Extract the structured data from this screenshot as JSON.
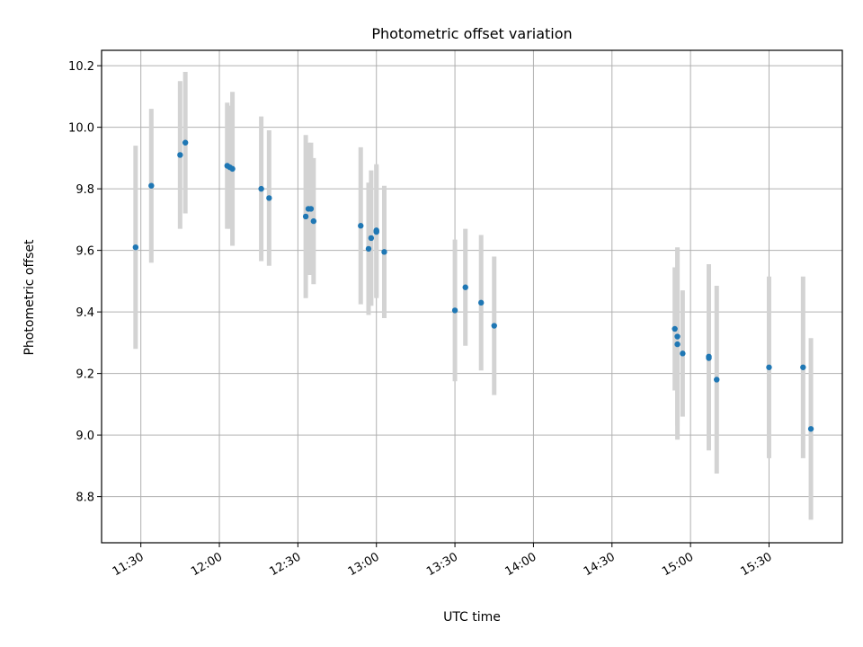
{
  "chart_data": {
    "type": "scatter",
    "title": "Photometric offset variation",
    "xlabel": "UTC time",
    "ylabel": "Photometric offset",
    "grid": true,
    "xlim": [
      "11:15",
      "15:58"
    ],
    "ylim": [
      8.65,
      10.25
    ],
    "x_ticks": [
      "11:30",
      "12:00",
      "12:30",
      "13:00",
      "13:30",
      "14:00",
      "14:30",
      "15:00",
      "15:30"
    ],
    "y_ticks": [
      8.8,
      9.0,
      9.2,
      9.4,
      9.6,
      9.8,
      10.0,
      10.2
    ],
    "colors": {
      "points": "#1f77b4",
      "errorbars": "#d3d3d3",
      "grid": "#b0b0b0"
    },
    "series": [
      {
        "points": [
          {
            "x": "11:28",
            "y": 9.61,
            "err": 0.33
          },
          {
            "x": "11:34",
            "y": 9.81,
            "err": 0.25
          },
          {
            "x": "11:45",
            "y": 9.91,
            "err": 0.24
          },
          {
            "x": "11:47",
            "y": 9.95,
            "err": 0.23
          },
          {
            "x": "12:03",
            "y": 9.875,
            "err": 0.205
          },
          {
            "x": "12:04",
            "y": 9.87,
            "err": 0.2
          },
          {
            "x": "12:05",
            "y": 9.865,
            "err": 0.25
          },
          {
            "x": "12:16",
            "y": 9.8,
            "err": 0.235
          },
          {
            "x": "12:19",
            "y": 9.77,
            "err": 0.22
          },
          {
            "x": "12:33",
            "y": 9.71,
            "err": 0.265
          },
          {
            "x": "12:34",
            "y": 9.735,
            "err": 0.215
          },
          {
            "x": "12:35",
            "y": 9.735,
            "err": 0.215
          },
          {
            "x": "12:36",
            "y": 9.695,
            "err": 0.205
          },
          {
            "x": "12:54",
            "y": 9.68,
            "err": 0.255
          },
          {
            "x": "12:57",
            "y": 9.605,
            "err": 0.215
          },
          {
            "x": "12:58",
            "y": 9.64,
            "err": 0.22
          },
          {
            "x": "13:00",
            "y": 9.665,
            "err": 0.215
          },
          {
            "x": "13:00",
            "y": 9.66,
            "err": 0.215
          },
          {
            "x": "13:03",
            "y": 9.595,
            "err": 0.215
          },
          {
            "x": "13:30",
            "y": 9.405,
            "err": 0.23
          },
          {
            "x": "13:34",
            "y": 9.48,
            "err": 0.19
          },
          {
            "x": "13:40",
            "y": 9.43,
            "err": 0.22
          },
          {
            "x": "13:45",
            "y": 9.355,
            "err": 0.225
          },
          {
            "x": "14:54",
            "y": 9.345,
            "err": 0.2
          },
          {
            "x": "14:55",
            "y": 9.295,
            "err": 0.31
          },
          {
            "x": "14:55",
            "y": 9.32,
            "err": 0.29
          },
          {
            "x": "14:57",
            "y": 9.265,
            "err": 0.205
          },
          {
            "x": "15:07",
            "y": 9.255,
            "err": 0.3
          },
          {
            "x": "15:07",
            "y": 9.25,
            "err": 0.3
          },
          {
            "x": "15:10",
            "y": 9.18,
            "err": 0.305
          },
          {
            "x": "15:30",
            "y": 9.22,
            "err": 0.295
          },
          {
            "x": "15:43",
            "y": 9.22,
            "err": 0.295
          },
          {
            "x": "15:46",
            "y": 9.02,
            "err": 0.295
          }
        ]
      }
    ]
  }
}
